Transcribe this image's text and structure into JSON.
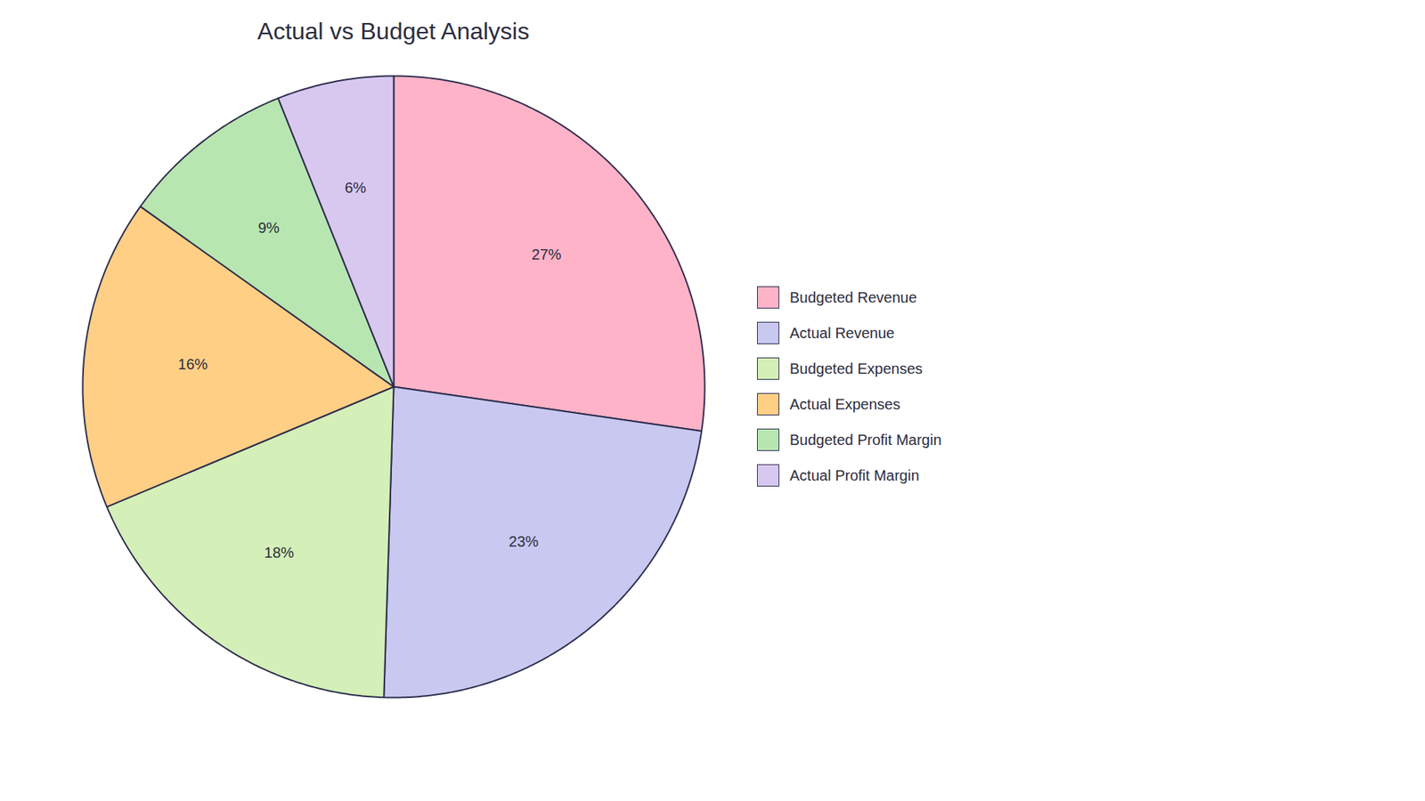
{
  "chart_data": {
    "type": "pie",
    "title": "Actual vs Budget Analysis",
    "categories": [
      "Budgeted Revenue",
      "Actual Revenue",
      "Budgeted Expenses",
      "Actual Expenses",
      "Budgeted Profit Margin",
      "Actual Profit Margin"
    ],
    "values": [
      27,
      23,
      18,
      16,
      9,
      6
    ],
    "value_labels": [
      "27%",
      "23%",
      "18%",
      "16%",
      "9%",
      "6%"
    ],
    "colors": [
      "#FFB3C8",
      "#C8C8F0",
      "#D4EFB8",
      "#FFCF85",
      "#B8E6B0",
      "#D8C8F0"
    ],
    "data_labels": true,
    "legend": "right"
  }
}
